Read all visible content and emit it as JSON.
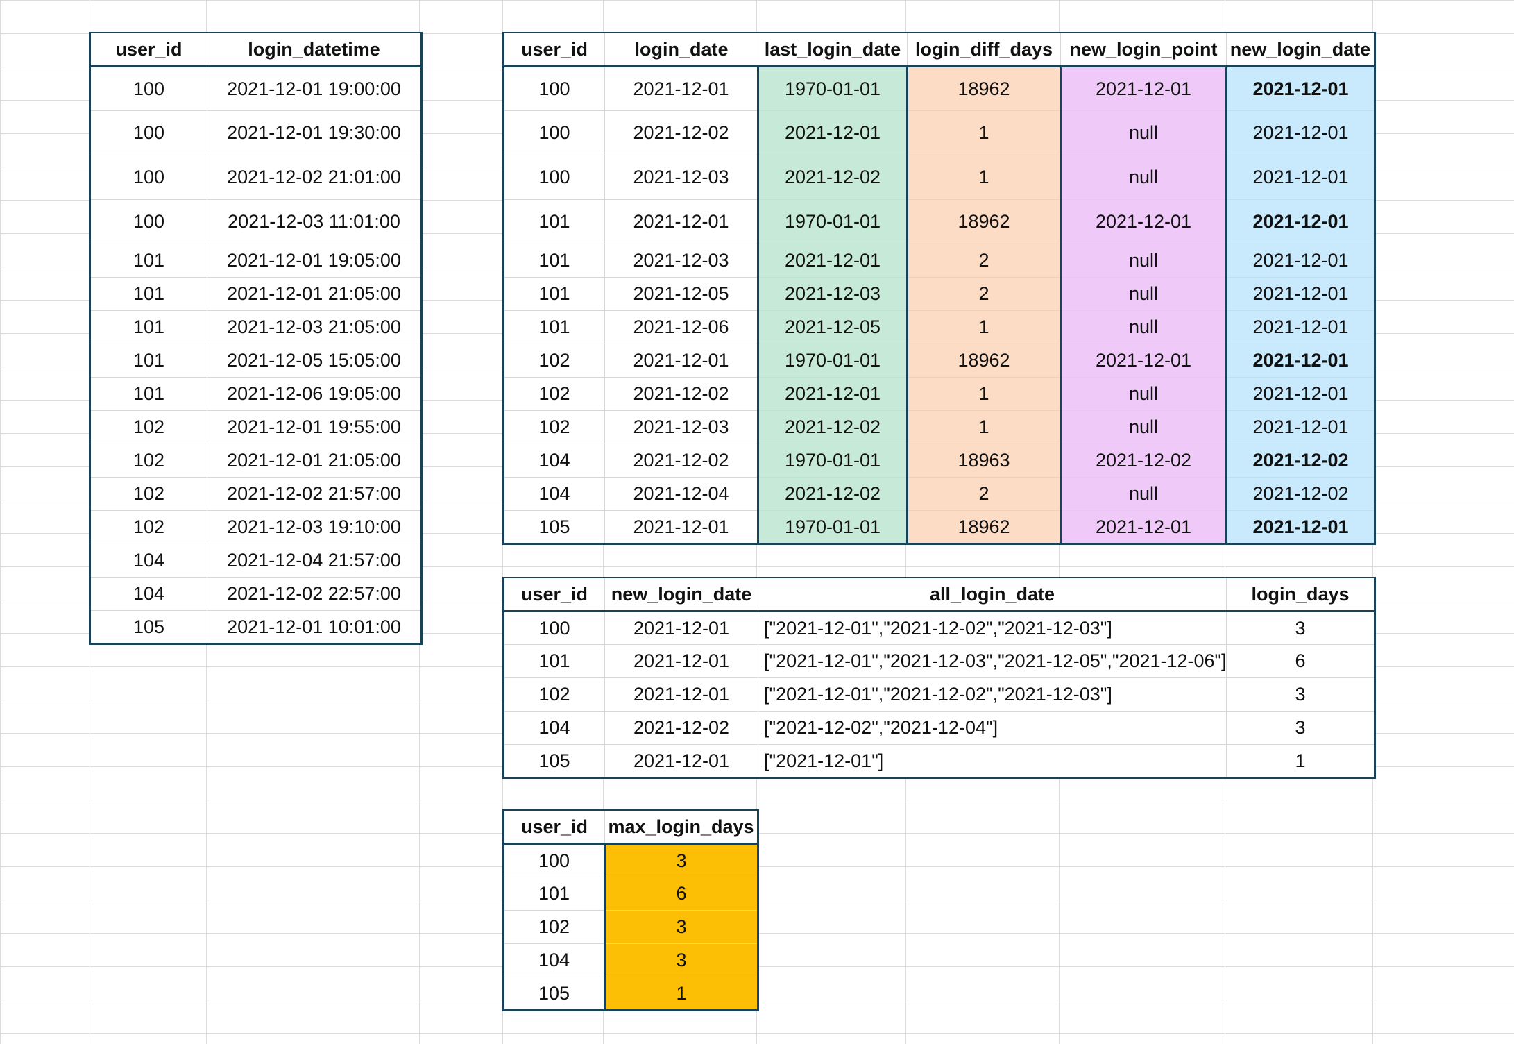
{
  "login_table": {
    "headers": [
      "user_id",
      "login_datetime"
    ],
    "rows": [
      [
        "100",
        "2021-12-01 19:00:00"
      ],
      [
        "100",
        "2021-12-01 19:30:00"
      ],
      [
        "100",
        "2021-12-02 21:01:00"
      ],
      [
        "100",
        "2021-12-03 11:01:00"
      ],
      [
        "101",
        "2021-12-01 19:05:00"
      ],
      [
        "101",
        "2021-12-01 21:05:00"
      ],
      [
        "101",
        "2021-12-03 21:05:00"
      ],
      [
        "101",
        "2021-12-05 15:05:00"
      ],
      [
        "101",
        "2021-12-06 19:05:00"
      ],
      [
        "102",
        "2021-12-01 19:55:00"
      ],
      [
        "102",
        "2021-12-01 21:05:00"
      ],
      [
        "102",
        "2021-12-02 21:57:00"
      ],
      [
        "102",
        "2021-12-03 19:10:00"
      ],
      [
        "104",
        "2021-12-04 21:57:00"
      ],
      [
        "104",
        "2021-12-02 22:57:00"
      ],
      [
        "105",
        "2021-12-01 10:01:00"
      ]
    ]
  },
  "diff_table": {
    "headers": [
      "user_id",
      "login_date",
      "last_login_date",
      "login_diff_days",
      "new_login_point",
      "new_login_date"
    ],
    "rows": [
      [
        "100",
        "2021-12-01",
        "1970-01-01",
        "18962",
        "2021-12-01",
        "2021-12-01"
      ],
      [
        "100",
        "2021-12-02",
        "2021-12-01",
        "1",
        "null",
        "2021-12-01"
      ],
      [
        "100",
        "2021-12-03",
        "2021-12-02",
        "1",
        "null",
        "2021-12-01"
      ],
      [
        "101",
        "2021-12-01",
        "1970-01-01",
        "18962",
        "2021-12-01",
        "2021-12-01"
      ],
      [
        "101",
        "2021-12-03",
        "2021-12-01",
        "2",
        "null",
        "2021-12-01"
      ],
      [
        "101",
        "2021-12-05",
        "2021-12-03",
        "2",
        "null",
        "2021-12-01"
      ],
      [
        "101",
        "2021-12-06",
        "2021-12-05",
        "1",
        "null",
        "2021-12-01"
      ],
      [
        "102",
        "2021-12-01",
        "1970-01-01",
        "18962",
        "2021-12-01",
        "2021-12-01"
      ],
      [
        "102",
        "2021-12-02",
        "2021-12-01",
        "1",
        "null",
        "2021-12-01"
      ],
      [
        "102",
        "2021-12-03",
        "2021-12-02",
        "1",
        "null",
        "2021-12-01"
      ],
      [
        "104",
        "2021-12-02",
        "1970-01-01",
        "18963",
        "2021-12-02",
        "2021-12-02"
      ],
      [
        "104",
        "2021-12-04",
        "2021-12-02",
        "2",
        "null",
        "2021-12-02"
      ],
      [
        "105",
        "2021-12-01",
        "1970-01-01",
        "18962",
        "2021-12-01",
        "2021-12-01"
      ]
    ],
    "bold_last_col": [
      true,
      false,
      false,
      true,
      false,
      false,
      false,
      true,
      false,
      false,
      true,
      false,
      true
    ]
  },
  "group_table": {
    "headers": [
      "user_id",
      "new_login_date",
      "all_login_date",
      "login_days"
    ],
    "rows": [
      [
        "100",
        "2021-12-01",
        "[\"2021-12-01\",\"2021-12-02\",\"2021-12-03\"]",
        "3"
      ],
      [
        "101",
        "2021-12-01",
        "[\"2021-12-01\",\"2021-12-03\",\"2021-12-05\",\"2021-12-06\"]",
        "6"
      ],
      [
        "102",
        "2021-12-01",
        "[\"2021-12-01\",\"2021-12-02\",\"2021-12-03\"]",
        "3"
      ],
      [
        "104",
        "2021-12-02",
        "[\"2021-12-02\",\"2021-12-04\"]",
        "3"
      ],
      [
        "105",
        "2021-12-01",
        "[\"2021-12-01\"]",
        "1"
      ]
    ]
  },
  "max_table": {
    "headers": [
      "user_id",
      "max_login_days"
    ],
    "rows": [
      [
        "100",
        "3"
      ],
      [
        "101",
        "6"
      ],
      [
        "102",
        "3"
      ],
      [
        "104",
        "3"
      ],
      [
        "105",
        "1"
      ]
    ]
  },
  "colors": {
    "border": "#17425a",
    "last_login_date_fill": "#c6ead7",
    "login_diff_days_fill": "#fcdcc4",
    "new_login_point_fill": "#efcaf8",
    "new_login_date_fill": "#c8eafc",
    "max_login_days_fill": "#fdbf06"
  }
}
